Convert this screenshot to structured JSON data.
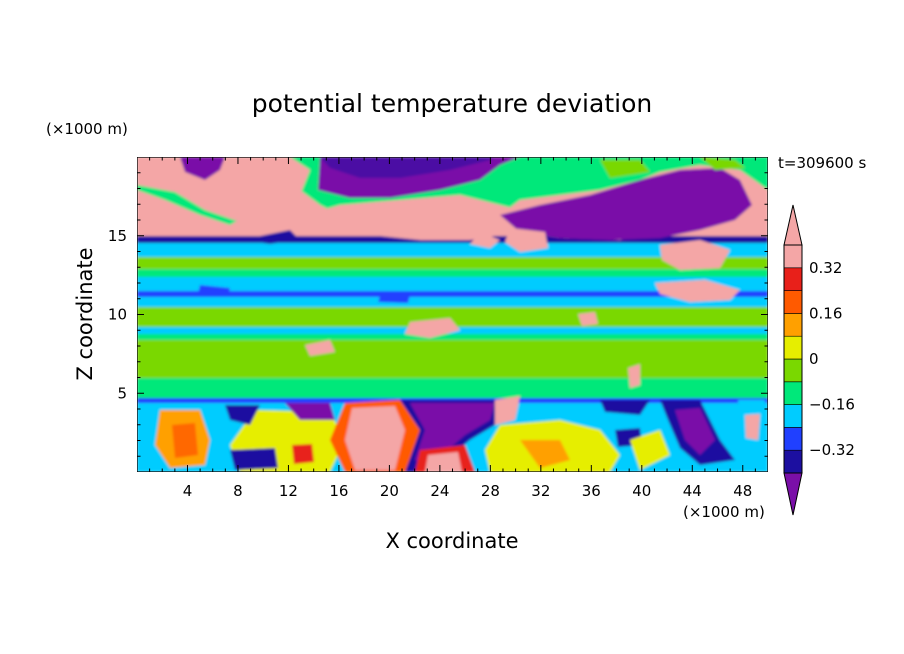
{
  "chart_data": {
    "type": "heatmap",
    "title": "potential temperature deviation",
    "xlabel": "X coordinate",
    "ylabel": "Z coordinate",
    "x_unit": "(×1000 m)",
    "y_unit": "(×1000 m)",
    "time_label": "t=309600 s",
    "xlim": [
      0,
      50
    ],
    "ylim": [
      0,
      20
    ],
    "x_ticks": [
      4,
      8,
      12,
      16,
      20,
      24,
      28,
      32,
      36,
      40,
      44,
      48
    ],
    "y_ticks": [
      5,
      10,
      15
    ],
    "colorbar": {
      "levels": [
        -0.4,
        -0.32,
        -0.24,
        -0.16,
        -0.08,
        0,
        0.08,
        0.16,
        0.24,
        0.32,
        0.4
      ],
      "labels": [
        "0.32",
        "0.16",
        "0",
        "−0.16",
        "−0.32"
      ],
      "label_values": [
        0.32,
        0.16,
        0,
        -0.16,
        -0.32
      ],
      "colors": [
        "#7a0fa8",
        "#1c0fa0",
        "#2040ff",
        "#00ccff",
        "#00e87a",
        "#7ad800",
        "#e6ee00",
        "#ffa000",
        "#ff5a00",
        "#e8201a",
        "#f4a6a6"
      ],
      "extends": "both"
    },
    "layers": [
      {
        "z": [
          15.0,
          20.0
        ],
        "description_value": 0.4
      },
      {
        "z": [
          14.5,
          15.0
        ],
        "description_value": -0.32
      },
      {
        "z": [
          11.0,
          14.5
        ],
        "description_value": 0.02
      },
      {
        "z": [
          10.5,
          11.0
        ],
        "description_value": -0.32
      },
      {
        "z": [
          8.5,
          10.5
        ],
        "description_value": 0.02
      },
      {
        "z": [
          4.8,
          8.5
        ],
        "description_value": 0.05
      },
      {
        "z": [
          0.0,
          4.8
        ],
        "description_value": -0.1
      }
    ]
  }
}
